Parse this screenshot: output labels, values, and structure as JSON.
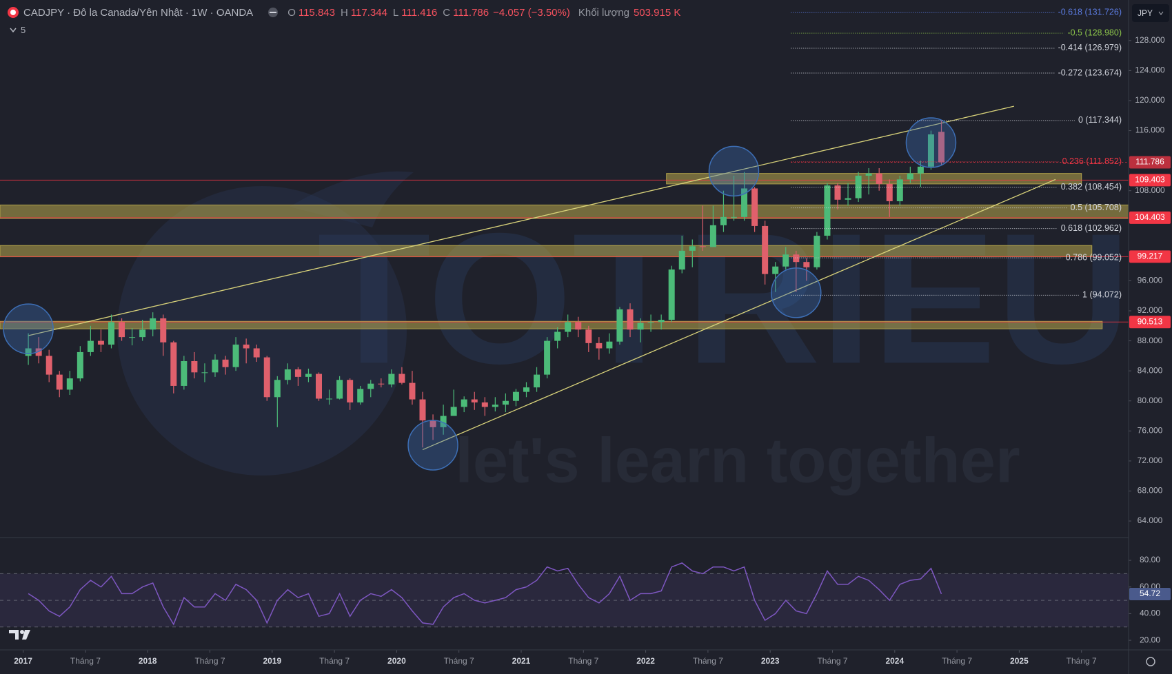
{
  "chart_data": [
    {
      "type": "candlestick",
      "title": "CADJPY · Đô la Canada/Yên Nhật · 1W · OANDA",
      "collapsed_count": 5,
      "currency": "JPY",
      "ohlc_legend": [
        {
          "label": "O",
          "value": 115.843
        },
        {
          "label": "H",
          "value": 117.344
        },
        {
          "label": "L",
          "value": 111.416
        },
        {
          "label": "C",
          "value": 111.786
        }
      ],
      "change": "−4.057 (−3.50%)",
      "volume_label": "Khối lượng",
      "volume": "503.915 K",
      "x": [
        "2017-01",
        "2017-02",
        "2017-03",
        "2017-04",
        "2017-05",
        "2017-06",
        "2017-07",
        "2017-08",
        "2017-09",
        "2017-10",
        "2017-11",
        "2017-12",
        "2018-01",
        "2018-02",
        "2018-03",
        "2018-04",
        "2018-05",
        "2018-06",
        "2018-07",
        "2018-08",
        "2018-09",
        "2018-10",
        "2018-11",
        "2018-12",
        "2019-01",
        "2019-02",
        "2019-03",
        "2019-04",
        "2019-05",
        "2019-06",
        "2019-07",
        "2019-08",
        "2019-09",
        "2019-10",
        "2019-11",
        "2019-12",
        "2020-01",
        "2020-02",
        "2020-03",
        "2020-04",
        "2020-05",
        "2020-06",
        "2020-07",
        "2020-08",
        "2020-09",
        "2020-10",
        "2020-11",
        "2020-12",
        "2021-01",
        "2021-02",
        "2021-03",
        "2021-04",
        "2021-05",
        "2021-06",
        "2021-07",
        "2021-08",
        "2021-09",
        "2021-10",
        "2021-11",
        "2021-12",
        "2022-01",
        "2022-02",
        "2022-03",
        "2022-04",
        "2022-05",
        "2022-06",
        "2022-07",
        "2022-08",
        "2022-09",
        "2022-10",
        "2022-11",
        "2022-12",
        "2023-01",
        "2023-02",
        "2023-03",
        "2023-04",
        "2023-05",
        "2023-06",
        "2023-07",
        "2023-08",
        "2023-09",
        "2023-10",
        "2023-11",
        "2023-12",
        "2024-01",
        "2024-02",
        "2024-03",
        "2024-04",
        "2024-05"
      ],
      "open": [
        86,
        87,
        86,
        83.5,
        81.5,
        83,
        86.5,
        88,
        87.5,
        90.5,
        88.5,
        88.5,
        89.5,
        91,
        87.8,
        82,
        85.3,
        83.8,
        83.8,
        85.5,
        84.5,
        87.5,
        87,
        85.8,
        80.5,
        82.8,
        84.2,
        83.2,
        83.6,
        80.3,
        80.3,
        82.8,
        79.8,
        81.6,
        82.3,
        82.2,
        83.6,
        82.4,
        80.2,
        77.4,
        76.5,
        78,
        79.2,
        80.2,
        79.8,
        79.2,
        79.5,
        80,
        81.2,
        81.8,
        83.5,
        88,
        89.2,
        90.5,
        89.5,
        87.7,
        87,
        87.9,
        92.2,
        89.5,
        90.4,
        90.5,
        90.8,
        97.5,
        100,
        100.6,
        100.5,
        103.4,
        104.5,
        104.5,
        108.3,
        103.3,
        96.9,
        97.9,
        99.5,
        98.5,
        97.8,
        102,
        108.7,
        106.8,
        107,
        110,
        110.3,
        108.9,
        106.6,
        109.5,
        110.3,
        111.2,
        115.843
      ],
      "high": [
        89,
        88.5,
        86.8,
        84,
        84,
        87.3,
        90,
        89.5,
        91.5,
        91,
        89.7,
        90.8,
        91.8,
        91.5,
        88,
        86,
        86.5,
        85,
        86.2,
        86,
        88.5,
        88.3,
        87.5,
        86,
        83.3,
        85,
        84.5,
        84.3,
        83.8,
        81.5,
        83.3,
        83,
        82,
        82.8,
        83,
        84.2,
        84.5,
        84,
        81.2,
        78.2,
        79.5,
        81.5,
        80.6,
        81.2,
        80.5,
        80.5,
        81,
        81.6,
        82.5,
        84.5,
        88.5,
        89.8,
        91.5,
        91.2,
        90,
        88.5,
        89,
        92.5,
        93,
        91,
        91.5,
        91.5,
        98,
        102,
        101.5,
        106,
        106,
        108,
        110,
        110.5,
        108.5,
        104,
        98.5,
        100.5,
        100,
        99,
        102.5,
        109,
        109,
        109,
        110.5,
        111,
        111,
        109.5,
        110,
        111.2,
        112,
        116,
        117.344
      ],
      "low": [
        84.8,
        85,
        82.5,
        80.5,
        80.8,
        82.6,
        86,
        86.5,
        87,
        88,
        87.4,
        88,
        88.6,
        86,
        81,
        81.5,
        83,
        82.5,
        83.2,
        83.5,
        84,
        85,
        85.2,
        80,
        76.5,
        82.2,
        82,
        82.5,
        80,
        79.5,
        80.2,
        78.8,
        79.5,
        80.5,
        81.8,
        81.8,
        82.2,
        79.5,
        73.8,
        74.8,
        75.5,
        78,
        78.5,
        78.8,
        78,
        78.6,
        78.5,
        79.3,
        80.5,
        81.2,
        83,
        87,
        88.5,
        88.5,
        86.5,
        85.5,
        86.3,
        87.5,
        88.5,
        87.8,
        89.2,
        89.5,
        90.5,
        97,
        97.8,
        100,
        100.5,
        102.5,
        104,
        104,
        102.5,
        95.5,
        94.5,
        97.5,
        94.5,
        96,
        97.5,
        101.5,
        105.5,
        106,
        106.5,
        107.5,
        108,
        104.5,
        106,
        109,
        108.5,
        110.8,
        111.416
      ],
      "close": [
        87,
        86,
        83.5,
        81.5,
        83,
        86.5,
        88,
        87.5,
        90.5,
        88.5,
        88.5,
        89.5,
        91,
        87.8,
        82,
        85.3,
        83.8,
        83.8,
        85.5,
        84.5,
        87.5,
        87,
        85.8,
        80.5,
        82.8,
        84.2,
        83.2,
        83.6,
        80.3,
        80.3,
        82.8,
        79.8,
        81.6,
        82.3,
        82.2,
        83.6,
        82.4,
        80.2,
        77.4,
        76.5,
        78,
        79.2,
        80.2,
        79.8,
        79.2,
        79.5,
        80,
        81.2,
        81.8,
        83.5,
        88,
        89.2,
        90.5,
        89.5,
        87.7,
        87,
        87.9,
        92.2,
        89.5,
        90.4,
        90.5,
        90.8,
        97.5,
        100,
        100.6,
        100.5,
        103.4,
        104.5,
        104.5,
        108.3,
        103.3,
        96.9,
        97.9,
        99.5,
        98.5,
        97.8,
        102,
        108.7,
        106.8,
        107,
        110,
        110.3,
        108.9,
        106.6,
        109.5,
        110.3,
        111.2,
        115.5,
        111.786
      ],
      "up_color": "#4cbb79",
      "down_color": "#e0606c",
      "ylim": [
        61.8,
        133.4
      ],
      "yticks": [
        {
          "value": 128,
          "label": "128.000"
        },
        {
          "value": 124,
          "label": "124.000"
        },
        {
          "value": 120,
          "label": "120.000"
        },
        {
          "value": 116,
          "label": "116.000"
        },
        {
          "value": 108,
          "label": "108.000"
        },
        {
          "value": 96,
          "label": "96.000"
        },
        {
          "value": 92,
          "label": "92.000"
        },
        {
          "value": 88,
          "label": "88.000"
        },
        {
          "value": 84,
          "label": "84.000"
        },
        {
          "value": 80,
          "label": "80.000"
        },
        {
          "value": 76,
          "label": "76.000"
        },
        {
          "value": 72,
          "label": "72.000"
        },
        {
          "value": 68,
          "label": "68.000"
        },
        {
          "value": 64,
          "label": "64.000"
        }
      ],
      "xticks": [
        {
          "value": "2017-01",
          "label": "2017"
        },
        {
          "value": "2017-07",
          "label": "Tháng 7"
        },
        {
          "value": "2018-01",
          "label": "2018"
        },
        {
          "value": "2018-07",
          "label": "Tháng 7"
        },
        {
          "value": "2019-01",
          "label": "2019"
        },
        {
          "value": "2019-07",
          "label": "Tháng 7"
        },
        {
          "value": "2020-01",
          "label": "2020"
        },
        {
          "value": "2020-07",
          "label": "Tháng 7"
        },
        {
          "value": "2021-01",
          "label": "2021"
        },
        {
          "value": "2021-07",
          "label": "Tháng 7"
        },
        {
          "value": "2022-01",
          "label": "2022"
        },
        {
          "value": "2022-07",
          "label": "Tháng 7"
        },
        {
          "value": "2023-01",
          "label": "2023"
        },
        {
          "value": "2023-07",
          "label": "Tháng 7"
        },
        {
          "value": "2024-01",
          "label": "2024"
        },
        {
          "value": "2024-07",
          "label": "Tháng 7"
        },
        {
          "value": "2025-01",
          "label": "2025"
        },
        {
          "value": "2025-07",
          "label": "Tháng 7"
        }
      ],
      "price_labels": [
        111.786,
        109.403,
        104.403,
        99.217,
        90.513
      ],
      "price_label_color": "#f23645",
      "zone_color": "#b9a94c",
      "zones": [
        {
          "from": 108.9,
          "to": 110.3,
          "start": "2022-03",
          "end": "2025-07"
        },
        {
          "from": 104.3,
          "to": 106.1
        },
        {
          "from": 99.2,
          "to": 100.7,
          "end": "2025-08"
        },
        {
          "from": 89.6,
          "to": 90.6,
          "end": "2025-09"
        }
      ],
      "fib_start": "2023-03",
      "fib_levels": [
        {
          "label": "-0.618 (131.726)",
          "value": 131.726,
          "color": "#5b7be0"
        },
        {
          "label": "-0.5 (128.980)",
          "value": 128.98,
          "color": "#8bc34a"
        },
        {
          "label": "-0.414 (126.979)",
          "value": 126.979,
          "color": "#d1d4dc"
        },
        {
          "label": "-0.272 (123.674)",
          "value": 123.674,
          "color": "#d1d4dc"
        },
        {
          "label": "0 (117.344)",
          "value": 117.344,
          "color": "#d1d4dc"
        },
        {
          "label": "0.236 (111.852)",
          "value": 111.852,
          "color": "#f23645"
        },
        {
          "label": "0.382 (108.454)",
          "value": 108.454,
          "color": "#d1d4dc"
        },
        {
          "label": "0.5 (105.708)",
          "value": 105.708,
          "color": "#d1d4dc"
        },
        {
          "label": "0.618 (102.962)",
          "value": 102.962,
          "color": "#d1d4dc"
        },
        {
          "label": "0.786 (99.052)",
          "value": 99.052,
          "color": "#d1d4dc"
        },
        {
          "label": "1 (94.072)",
          "value": 94.072,
          "color": "#d1d4dc"
        }
      ],
      "trend_color": "#d8d27a",
      "trendlines": [
        [
          {
            "x": "2017-01",
            "y": 88.7
          },
          {
            "x": "2024-12",
            "y": 119.25
          }
        ],
        [
          {
            "x": "2020-03",
            "y": 73.5
          },
          {
            "x": "2025-04",
            "y": 109.5
          }
        ]
      ],
      "highlight_color": "#3d6fb6",
      "highlights": [
        {
          "x": "2017-01",
          "y": 89.6
        },
        {
          "x": "2020-04",
          "y": 74.1
        },
        {
          "x": "2022-09",
          "y": 110.6
        },
        {
          "x": "2023-03",
          "y": 94.4
        },
        {
          "x": "2024-04",
          "y": 114.4
        }
      ],
      "watermark": {
        "title": "TOTRIEU",
        "tagline": "let's learn together"
      }
    },
    {
      "type": "line",
      "color": "#7e57c2",
      "values": [
        55,
        50,
        42,
        38,
        45,
        58,
        65,
        60,
        68,
        55,
        55,
        60,
        63,
        45,
        32,
        52,
        45,
        45,
        55,
        50,
        62,
        58,
        50,
        33,
        50,
        58,
        52,
        55,
        38,
        40,
        55,
        38,
        50,
        55,
        53,
        58,
        52,
        42,
        33,
        32,
        45,
        52,
        55,
        50,
        48,
        50,
        52,
        58,
        60,
        65,
        75,
        72,
        74,
        62,
        52,
        48,
        55,
        68,
        50,
        55,
        55,
        57,
        75,
        78,
        72,
        70,
        75,
        75,
        72,
        75,
        50,
        35,
        40,
        50,
        42,
        40,
        55,
        72,
        62,
        62,
        68,
        65,
        58,
        50,
        62,
        65,
        66,
        74,
        54.72
      ],
      "levels": [
        70,
        50,
        30
      ],
      "ylim": [
        12.8,
        97.1
      ],
      "yticks": [
        {
          "value": 80,
          "label": "80.00"
        },
        {
          "value": 60,
          "label": "60.00"
        },
        {
          "value": 40,
          "label": "40.00"
        },
        {
          "value": 20,
          "label": "20.00"
        }
      ]
    }
  ]
}
